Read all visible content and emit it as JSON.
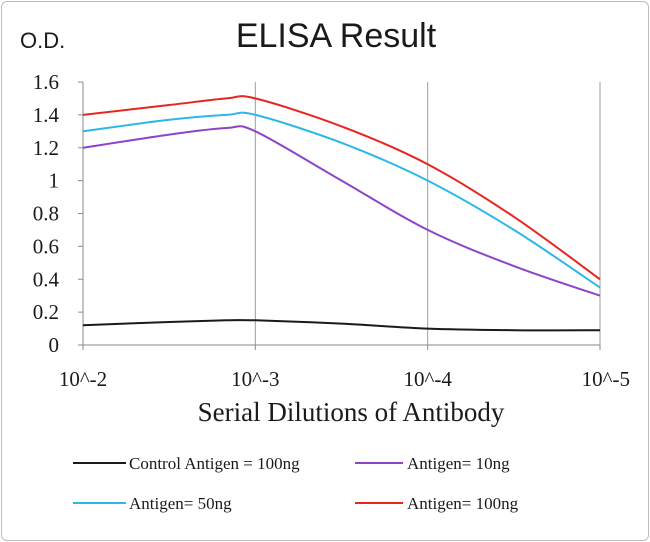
{
  "chart_data": {
    "type": "line",
    "title": "ELISA Result",
    "ylabel": "O.D.",
    "xlabel": "Serial  Dilutions  of Antibody",
    "x_tick_labels": [
      "10^-2",
      "10^-3",
      "10^-4",
      "10^-5"
    ],
    "x_scale": "log",
    "x_values": [
      0.01,
      0.00316,
      0.00147,
      0.001,
      0.000316,
      0.0001,
      3.16e-05,
      1e-05
    ],
    "y_ticks": [
      "0",
      "0.2",
      "0.4",
      "0.6",
      "0.8",
      "1",
      "1.2",
      "1.4",
      "1.6"
    ],
    "ylim": [
      0,
      1.6
    ],
    "grid": "vertical",
    "legend_position": "bottom",
    "series": [
      {
        "name": "Control Antigen = 100ng",
        "color": "#1a1a1a",
        "values": [
          0.12,
          0.14,
          0.15,
          0.15,
          0.13,
          0.1,
          0.09,
          0.09
        ]
      },
      {
        "name": "Antigen= 10ng",
        "color": "#8e44c9",
        "values": [
          1.2,
          1.28,
          1.32,
          1.3,
          1.0,
          0.7,
          0.48,
          0.3
        ]
      },
      {
        "name": "Antigen= 50ng",
        "color": "#2bb8e8",
        "values": [
          1.3,
          1.37,
          1.4,
          1.4,
          1.23,
          1.0,
          0.7,
          0.35
        ]
      },
      {
        "name": "Antigen= 100ng",
        "color": "#e8261f",
        "values": [
          1.4,
          1.46,
          1.5,
          1.5,
          1.33,
          1.1,
          0.78,
          0.4
        ]
      }
    ]
  }
}
